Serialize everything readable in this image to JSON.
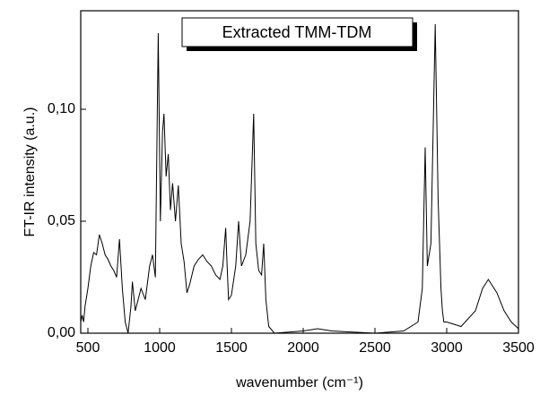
{
  "chart_data": {
    "type": "line",
    "ylabel": "FT-IR intensity (a.u.)",
    "xlabel": "wavenumber (cm⁻¹)",
    "xlim": [
      450,
      3500
    ],
    "ylim": [
      0,
      0.144
    ],
    "xticks": [
      500,
      1000,
      1500,
      2000,
      2500,
      3000,
      3500
    ],
    "yticks": [
      {
        "value": 0,
        "label": "0,00"
      },
      {
        "value": 0.05,
        "label": "0,05"
      },
      {
        "value": 0.1,
        "label": "0,10"
      }
    ],
    "legend": "top",
    "series": [
      {
        "name": "Extracted TMM-TDM",
        "color": "#000000",
        "x": [
          450,
          460,
          470,
          480,
          500,
          520,
          540,
          560,
          580,
          600,
          620,
          640,
          660,
          680,
          700,
          720,
          740,
          760,
          780,
          800,
          810,
          830,
          850,
          870,
          900,
          930,
          950,
          970,
          990,
          1005,
          1020,
          1030,
          1045,
          1060,
          1075,
          1090,
          1110,
          1130,
          1150,
          1170,
          1190,
          1210,
          1240,
          1270,
          1300,
          1330,
          1360,
          1390,
          1420,
          1440,
          1460,
          1470,
          1480,
          1500,
          1530,
          1550,
          1570,
          1600,
          1630,
          1655,
          1670,
          1690,
          1710,
          1725,
          1740,
          1760,
          1800,
          2000,
          2100,
          2200,
          2500,
          2700,
          2800,
          2830,
          2850,
          2865,
          2890,
          2920,
          2940,
          2960,
          2970,
          2980,
          3000,
          3100,
          3200,
          3250,
          3290,
          3350,
          3400,
          3450,
          3500
        ],
        "values": [
          0.005,
          0.008,
          0.005,
          0.012,
          0.02,
          0.03,
          0.036,
          0.035,
          0.044,
          0.04,
          0.035,
          0.033,
          0.03,
          0.028,
          0.025,
          0.042,
          0.02,
          0.005,
          0.0,
          0.012,
          0.023,
          0.01,
          0.015,
          0.02,
          0.015,
          0.03,
          0.035,
          0.025,
          0.134,
          0.05,
          0.09,
          0.098,
          0.07,
          0.08,
          0.055,
          0.067,
          0.05,
          0.066,
          0.04,
          0.032,
          0.018,
          0.022,
          0.03,
          0.033,
          0.035,
          0.032,
          0.03,
          0.026,
          0.024,
          0.03,
          0.047,
          0.03,
          0.015,
          0.017,
          0.03,
          0.05,
          0.03,
          0.035,
          0.05,
          0.098,
          0.04,
          0.028,
          0.026,
          0.04,
          0.015,
          0.003,
          0.0,
          0.001,
          0.002,
          0.001,
          0.0,
          0.001,
          0.005,
          0.02,
          0.083,
          0.03,
          0.04,
          0.138,
          0.06,
          0.02,
          0.01,
          0.005,
          0.005,
          0.003,
          0.01,
          0.02,
          0.024,
          0.018,
          0.01,
          0.005,
          0.002
        ]
      }
    ]
  }
}
